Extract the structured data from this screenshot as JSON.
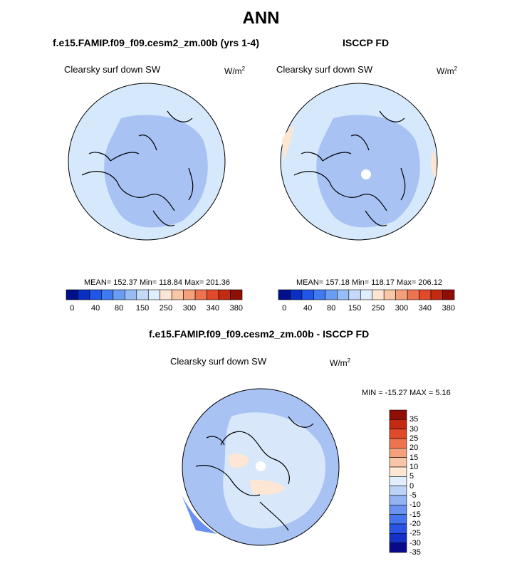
{
  "page_title": "ANN",
  "panels": [
    {
      "title": "f.e15.FAMIP.f09_f09.cesm2_zm.00b (yrs 1-4)",
      "variable": "Clearsky surf down SW",
      "units": "W/m",
      "units_sup": "2",
      "stats": "MEAN= 152.37  Min= 118.84  Max= 201.36"
    },
    {
      "title": "ISCCP FD",
      "variable": "Clearsky surf down SW",
      "units": "W/m",
      "units_sup": "2",
      "stats": "MEAN= 157.18  Min= 118.17  Max= 206.12"
    },
    {
      "title": "f.e15.FAMIP.f09_f09.cesm2_zm.00b - ISCCP FD",
      "variable": "Clearsky surf down SW",
      "units": "W/m",
      "units_sup": "2",
      "stats": "MIN = -15.27 MAX =   5.16"
    }
  ],
  "colors": {
    "abs_scale": [
      "#000f8a",
      "#0a2fc4",
      "#1f55e8",
      "#3f7af0",
      "#6a9df2",
      "#98bcf4",
      "#c5daf8",
      "#dfeefc",
      "#fde5d4",
      "#f9c6a6",
      "#f4a07a",
      "#ee7350",
      "#e04a2a",
      "#c42a12",
      "#8f0e05"
    ],
    "diff_scale": [
      "#0a0a88",
      "#1432c8",
      "#2a55e4",
      "#4575ec",
      "#6a93f0",
      "#93b4f2",
      "#bcd2f6",
      "#e2eefc",
      "#fde6d4",
      "#f8c6a6",
      "#f4a07a",
      "#ee7350",
      "#e04a2a",
      "#c42a12",
      "#8f0e05"
    ],
    "ocean_model": "#d6e8fb",
    "inner_model": "#a8c2f3",
    "ocean_obs": "#d6e8fb",
    "inner_obs": "#a8c2f3",
    "diff_bg": "#a8c2f3",
    "diff_light": "#d8e8fa"
  },
  "chart_data": [
    {
      "type": "heatmap",
      "projection": "north polar stereographic",
      "title": "f.e15.FAMIP.f09_f09.cesm2_zm.00b (yrs 1-4)",
      "subtitle": "Clearsky surf down SW",
      "units": "W/m2",
      "mean": 152.37,
      "min": 118.84,
      "max": 201.36,
      "colorbar_ticks": [
        "0",
        "40",
        "80",
        "150",
        "250",
        "300",
        "340",
        "380"
      ]
    },
    {
      "type": "heatmap",
      "projection": "north polar stereographic",
      "title": "ISCCP FD",
      "subtitle": "Clearsky surf down SW",
      "units": "W/m2",
      "mean": 157.18,
      "min": 118.17,
      "max": 206.12,
      "colorbar_ticks": [
        "0",
        "40",
        "80",
        "150",
        "250",
        "300",
        "340",
        "380"
      ]
    },
    {
      "type": "heatmap",
      "projection": "north polar stereographic",
      "title": "f.e15.FAMIP.f09_f09.cesm2_zm.00b - ISCCP FD",
      "subtitle": "Clearsky surf down SW",
      "units": "W/m2",
      "min": -15.27,
      "max": 5.16,
      "colorbar_ticks": [
        "35",
        "30",
        "25",
        "20",
        "15",
        "10",
        "5",
        "0",
        "-5",
        "-10",
        "-15",
        "-20",
        "-25",
        "-30",
        "-35"
      ]
    }
  ]
}
